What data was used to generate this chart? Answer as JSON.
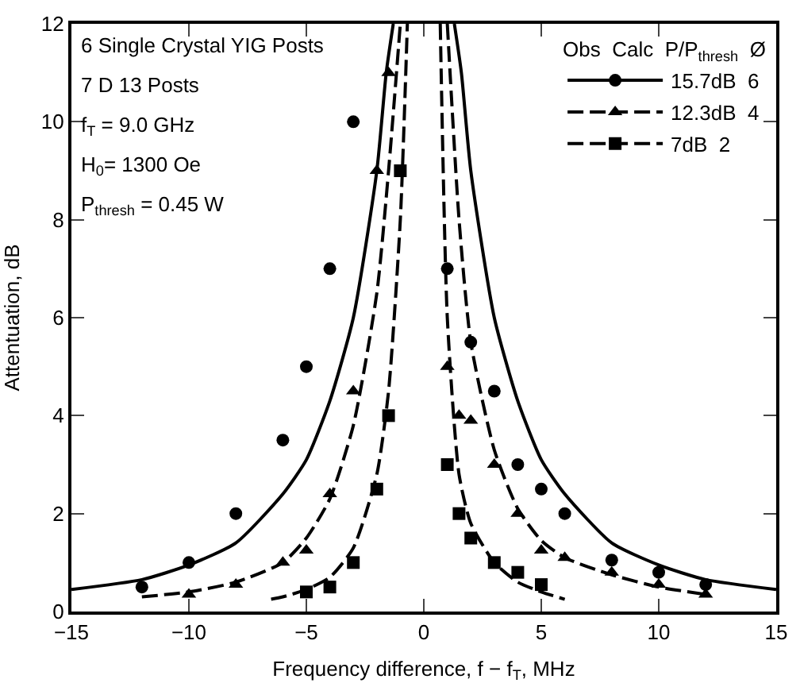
{
  "chart_data": {
    "type": "scatter",
    "xlabel": "Frequency difference, f − f$_{T}$, MHz",
    "ylabel": "Attentuation, dB",
    "legend_title": "Obs  Calc  P/P$_{thresh}$  Ø",
    "annotations": [
      "6 Single Crystal YIG Posts",
      "7 D 13 Posts",
      "f$_{T}$ = 9.0 GHz",
      "H$_{0}$= 1300 Oe",
      "P$_{thresh}$ = 0.45 W"
    ],
    "xlim": [
      -15,
      15
    ],
    "xticks": [
      -15,
      -10,
      -5,
      0,
      5,
      10,
      15
    ],
    "ylim": [
      0,
      12
    ],
    "yticks": [
      0,
      2,
      4,
      6,
      8,
      10,
      12
    ],
    "grid": false,
    "legend": "top right",
    "series": [
      {
        "marker": "circle",
        "color": "#000000",
        "x": [
          -12,
          -10,
          -8,
          -6,
          -5,
          -4,
          -3,
          1,
          2,
          3,
          4,
          5,
          6,
          8,
          10,
          12
        ],
        "values": [
          0.5,
          1.0,
          2.0,
          3.5,
          5.0,
          7.0,
          10.0,
          7.0,
          5.5,
          4.5,
          3.0,
          2.5,
          2.0,
          1.05,
          0.8,
          0.55
        ]
      },
      {
        "marker": "triangle",
        "color": "#000000",
        "x": [
          -10,
          -8,
          -6,
          -5,
          -4,
          -3,
          -2,
          -1.5,
          1,
          1.5,
          2,
          3,
          4,
          5,
          6,
          8,
          10,
          12
        ],
        "values": [
          0.35,
          0.55,
          1.0,
          1.25,
          2.4,
          4.5,
          9.0,
          11.0,
          5.0,
          4.0,
          3.9,
          3.0,
          2.0,
          1.25,
          1.1,
          0.8,
          0.55,
          0.35
        ]
      },
      {
        "marker": "square",
        "color": "#000000",
        "x": [
          -5,
          -4,
          -3,
          -2,
          -1.5,
          -1,
          1,
          1.5,
          2,
          3,
          4,
          5
        ],
        "values": [
          0.4,
          0.5,
          1.0,
          2.5,
          4.0,
          9.0,
          3.0,
          2.0,
          1.5,
          1.0,
          0.8,
          0.55
        ]
      },
      {
        "type": "line",
        "name": "15.7dB  6",
        "line_style": "solid",
        "color": "#000000",
        "x": [
          -15,
          -12,
          -10,
          -8,
          -6,
          -5,
          -4,
          -3,
          -2,
          -1.6,
          -1.3,
          0,
          1.3,
          1.6,
          2,
          3,
          4,
          5,
          6,
          8,
          10,
          12,
          15
        ],
        "values": [
          0.45,
          0.65,
          0.95,
          1.4,
          2.4,
          3.1,
          4.3,
          6.0,
          9.0,
          11.0,
          12,
          null,
          12,
          11.0,
          9.0,
          6.0,
          4.3,
          3.1,
          2.4,
          1.4,
          0.95,
          0.65,
          0.45
        ]
      },
      {
        "type": "line",
        "name": "12.3dB  4",
        "line_style": "dashed",
        "color": "#000000",
        "x": [
          -12,
          -10,
          -8,
          -6,
          -5,
          -4,
          -3,
          -2,
          -1.5,
          -1.0,
          0,
          1.0,
          1.5,
          2,
          3,
          4,
          5,
          6,
          8,
          10,
          12
        ],
        "values": [
          0.3,
          0.4,
          0.6,
          1.0,
          1.5,
          2.3,
          3.8,
          6.5,
          9.0,
          12,
          null,
          12,
          8.0,
          5.5,
          3.3,
          2.1,
          1.45,
          1.1,
          0.75,
          0.5,
          0.35
        ]
      },
      {
        "type": "line",
        "name": "7dB  2",
        "line_style": "dashed",
        "color": "#000000",
        "x": [
          -6.5,
          -6,
          -5,
          -4,
          -3,
          -2,
          -1.5,
          -1,
          -0.7,
          0,
          0.7,
          1,
          1.5,
          2,
          3,
          4,
          5,
          6
        ],
        "values": [
          0.25,
          0.3,
          0.45,
          0.7,
          1.3,
          2.8,
          4.5,
          8.0,
          12,
          null,
          12,
          6.0,
          2.8,
          1.8,
          1.0,
          0.6,
          0.4,
          0.25
        ]
      }
    ]
  }
}
